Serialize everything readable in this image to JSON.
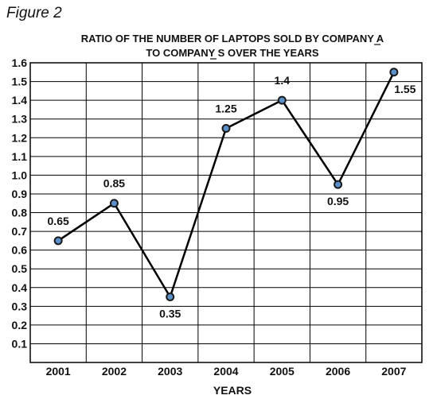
{
  "figure_label": "Figure 2",
  "chart_data": {
    "type": "line",
    "title_line1": "RATIO OF THE NUMBER OF LAPTOPS SOLD BY COMPANY A",
    "title_line2": "TO COMPANY S OVER THE YEARS",
    "xlabel": "YEARS",
    "ylabel": "",
    "categories": [
      "2001",
      "2002",
      "2003",
      "2004",
      "2005",
      "2006",
      "2007"
    ],
    "values": [
      0.65,
      0.85,
      0.35,
      1.25,
      1.4,
      0.95,
      1.55
    ],
    "data_labels": [
      "0.65",
      "0.85",
      "0.35",
      "1.25",
      "1.4",
      "0.95",
      "1.55"
    ],
    "label_positions": [
      "above",
      "above",
      "below",
      "above",
      "above",
      "below",
      "below"
    ],
    "ylim": [
      0,
      1.6
    ],
    "yticks": [
      "0.1",
      "0.2",
      "0.3",
      "0.4",
      "0.5",
      "0.6",
      "0.7",
      "0.8",
      "0.9",
      "1.0",
      "1.1",
      "1.2",
      "1.3",
      "1.4",
      "1.5",
      "1.6"
    ],
    "grid": true,
    "line_color": "#000000",
    "marker_color": "#5b8fc7"
  }
}
